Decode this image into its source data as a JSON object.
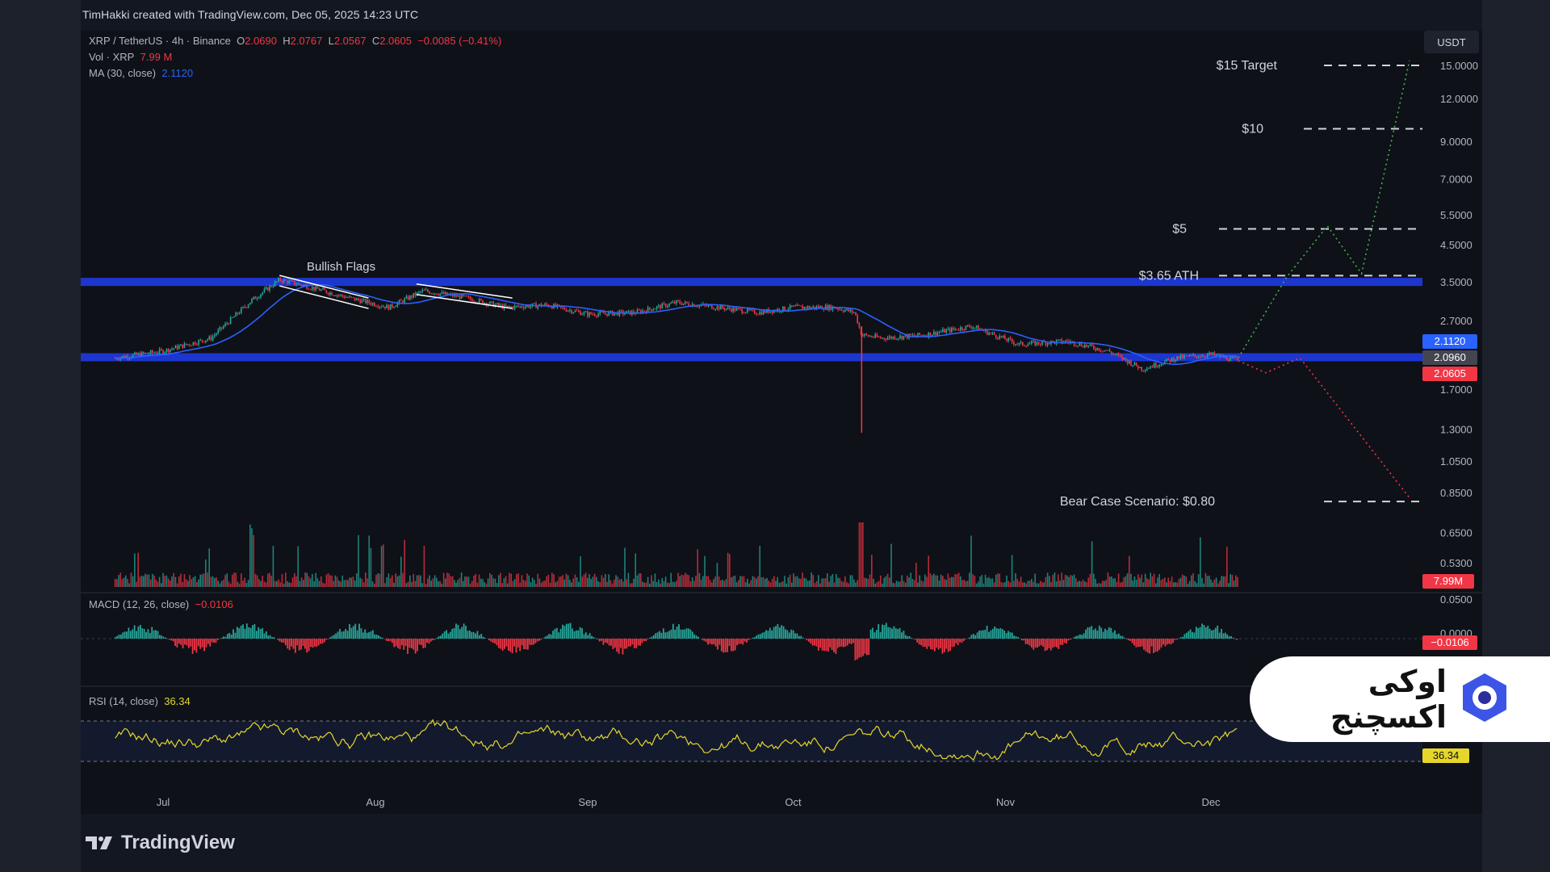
{
  "attribution": "TimHakki created with TradingView.com, Dec 05, 2025 14:23 UTC",
  "legend": {
    "symbol": "XRP / TetherUS · 4h · Binance",
    "o_label": "O",
    "o_value": "2.0690",
    "h_label": "H",
    "h_value": "2.0767",
    "l_label": "L",
    "l_value": "2.0567",
    "c_label": "C",
    "c_value": "2.0605",
    "change": "−0.0085 (−0.41%)",
    "vol_label": "Vol · XRP",
    "vol_value": "7.99 M",
    "ma_label": "MA (30, close)",
    "ma_value": "2.1120",
    "macd_label": "MACD (12, 26, close)",
    "macd_value": "−0.0106",
    "rsi_label": "RSI (14, close)",
    "rsi_value": "36.34"
  },
  "currency": "USDT",
  "brand": {
    "tradingview": "TradingView",
    "exchange": "اوکی اکسچنج"
  },
  "colors": {
    "up": "#26a69a",
    "down": "#f23645",
    "ma": "#2962ff",
    "zone": "#1e3df0",
    "rsi": "#e6d62b",
    "bull_path": "#4caf50",
    "bear_path": "#f23645"
  },
  "chart_data": [
    {
      "type": "line",
      "title": "XRP / TetherUS · 4h · Binance",
      "scale": "log",
      "y_ticks": [
        15.0,
        12.0,
        9.0,
        7.0,
        5.5,
        4.5,
        3.5,
        2.7,
        1.7,
        1.3,
        1.05,
        0.85,
        0.65,
        0.53
      ],
      "y_tick_labels": [
        "15.0000",
        "12.0000",
        "9.0000",
        "7.0000",
        "5.5000",
        "4.5000",
        "3.5000",
        "2.7000",
        "1.7000",
        "1.3000",
        "1.0500",
        "0.8500",
        "0.6500",
        "0.5300"
      ],
      "x_labels": [
        "Jul",
        "Aug",
        "Sep",
        "Oct",
        "Nov",
        "Dec"
      ],
      "price_path_approx": {
        "x": [
          "Jun 24",
          "Jul 1",
          "Jul 8",
          "Jul 14",
          "Jul 18",
          "Jul 22",
          "Jul 28",
          "Aug 3",
          "Aug 8",
          "Aug 14",
          "Aug 20",
          "Aug 26",
          "Sep 1",
          "Sep 8",
          "Sep 14",
          "Sep 20",
          "Sep 26",
          "Oct 1",
          "Oct 7",
          "Oct 10",
          "Oct 11",
          "Oct 14",
          "Oct 20",
          "Oct 27",
          "Nov 3",
          "Nov 10",
          "Nov 16",
          "Nov 21",
          "Nov 26",
          "Dec 1",
          "Dec 5"
        ],
        "y": [
          2.1,
          2.2,
          2.4,
          3.1,
          3.55,
          3.4,
          3.15,
          2.95,
          3.3,
          3.15,
          2.95,
          3.0,
          2.82,
          2.85,
          3.05,
          2.95,
          2.85,
          2.95,
          2.95,
          2.85,
          2.45,
          2.4,
          2.45,
          2.6,
          2.3,
          2.35,
          2.2,
          1.95,
          2.1,
          2.15,
          2.06
        ]
      },
      "flash_crash_low": 1.27,
      "levels": [
        {
          "label": "$15 Target",
          "value": 15.0
        },
        {
          "label": "$10",
          "value": 9.8
        },
        {
          "label": "$5",
          "value": 5.0
        },
        {
          "label": "$3.65 ATH",
          "value": 3.65
        },
        {
          "label": "Bear Case Scenario: $0.80",
          "value": 0.8
        }
      ],
      "zones": [
        3.5,
        2.11
      ],
      "annotations": [
        "Bullish Flags"
      ],
      "projection_bull": {
        "x": [
          "Dec 5",
          "Dec 12",
          "Dec 18",
          "Dec 23",
          "Dec 30"
        ],
        "y": [
          2.1,
          3.6,
          5.1,
          3.7,
          15.5
        ]
      },
      "projection_bear": {
        "x": [
          "Dec 5",
          "Dec 9",
          "Dec 14",
          "Dec 30"
        ],
        "y": [
          2.06,
          1.9,
          2.1,
          0.82
        ]
      },
      "price_labels": [
        {
          "label": "2.1120",
          "value": 2.112
        },
        {
          "label": "2.0960",
          "value": 2.096
        },
        {
          "label": "2.0605",
          "value": 2.0605
        }
      ]
    },
    {
      "type": "bar",
      "title": "Vol · XRP",
      "last_value_label": "7.99M"
    },
    {
      "type": "bar",
      "title": "MACD (12, 26, close)",
      "y_tick_labels": [
        "0.0500",
        "0.0000"
      ],
      "last_value_label": "−0.0106",
      "last_value": -0.0106
    },
    {
      "type": "line",
      "title": "RSI (14, close)",
      "last_value_label": "36.34",
      "last_value": 36.34,
      "bands": [
        70,
        30
      ]
    }
  ]
}
